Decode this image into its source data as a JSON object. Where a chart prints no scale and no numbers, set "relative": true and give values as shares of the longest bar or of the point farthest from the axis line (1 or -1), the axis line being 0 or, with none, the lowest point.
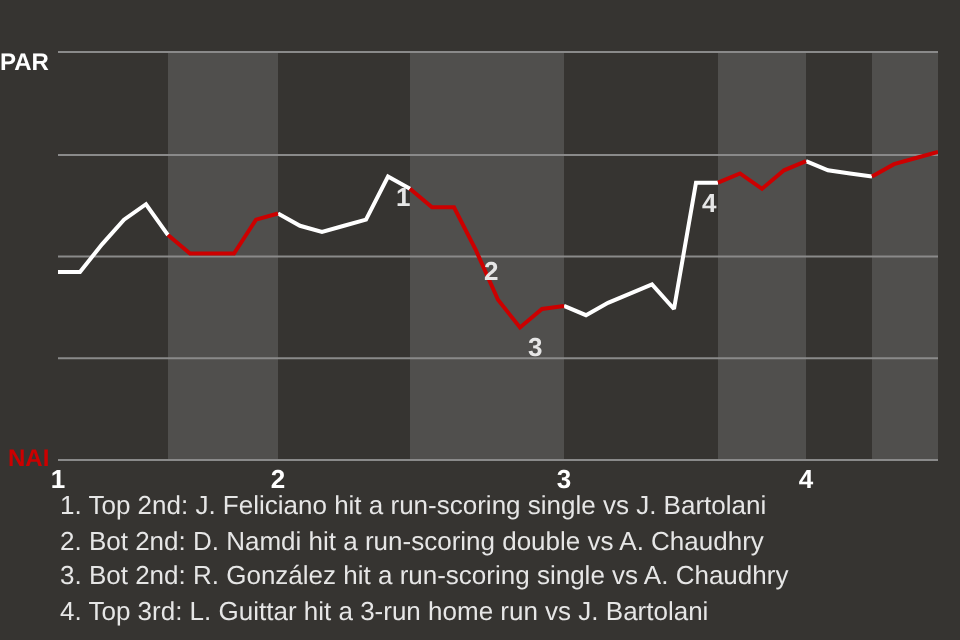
{
  "chart_data": {
    "type": "line",
    "relative": true,
    "categories": [
      "1",
      null,
      null,
      null,
      null,
      null,
      null,
      null,
      null,
      null,
      "2",
      null,
      null,
      null,
      null,
      null,
      null,
      null,
      null,
      null,
      null,
      null,
      null,
      "3",
      null,
      null,
      null,
      null,
      null,
      null,
      null,
      null,
      null,
      null,
      "4",
      null,
      null,
      null,
      null,
      null,
      null
    ],
    "series": [
      {
        "color": "#ffffff",
        "values": [
          0.61,
          0.61,
          0.7,
          0.78,
          0.83,
          0.73,
          null,
          null,
          null,
          null,
          0.8,
          0.76,
          0.74,
          0.76,
          0.78,
          0.92,
          0.88,
          null,
          null,
          null,
          null,
          null,
          null,
          0.5,
          0.47,
          0.51,
          0.54,
          0.57,
          0.49,
          0.9,
          0.9,
          null,
          null,
          null,
          0.97,
          0.94,
          0.93,
          0.92,
          null,
          null,
          null
        ]
      },
      {
        "color": "#cc0000",
        "values": [
          null,
          null,
          null,
          null,
          null,
          0.73,
          0.67,
          0.67,
          0.67,
          0.78,
          0.8,
          null,
          null,
          null,
          null,
          null,
          0.88,
          0.82,
          0.82,
          0.68,
          0.52,
          0.43,
          0.49,
          0.5,
          null,
          null,
          null,
          null,
          null,
          null,
          0.9,
          0.93,
          0.88,
          0.94,
          0.97,
          null,
          null,
          0.92,
          0.96,
          0.98,
          1
        ]
      }
    ],
    "ref_lines": [
      {
        "axis": "y",
        "value": 0.33,
        "color": "#8a8a8a"
      },
      {
        "axis": "y",
        "value": 0.66,
        "color": "#8a8a8a"
      },
      {
        "axis": "y",
        "value": 0.99,
        "color": "#8a8a8a"
      }
    ],
    "annotations": [
      {
        "text": "1",
        "y": 0.92
      },
      {
        "text": "2",
        "y": 0.68
      },
      {
        "text": "3",
        "y": 0.43
      },
      {
        "text": "4",
        "y": 0.9
      },
      "PAR",
      "NAI",
      "1. Top 2nd: J. Feliciano hit a run-scoring single vs J. Bartolani",
      "2. Bot 2nd: D. Namdi hit a run-scoring double vs A. Chaudhry",
      "3. Bot 2nd: R. González hit a run-scoring single vs A. Chaudhry",
      "4. Top 3rd: L. Guittar hit a 3-run home run vs J. Bartolani"
    ]
  }
}
